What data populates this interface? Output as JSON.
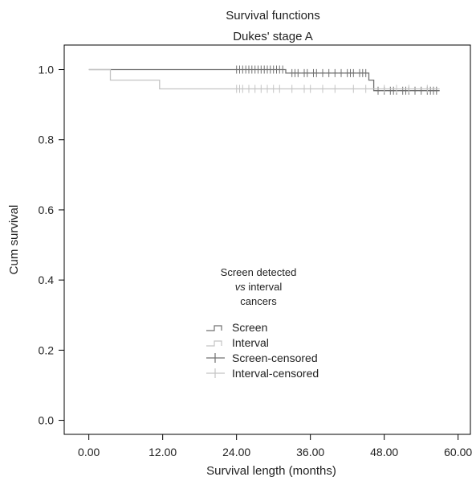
{
  "chart_data": {
    "type": "line",
    "title": "Survival functions",
    "subtitle": "Dukes' stage A",
    "xlabel": "Survival length (months)",
    "ylabel": "Cum survival",
    "xlim": [
      -4,
      62
    ],
    "ylim": [
      -0.04,
      1.07
    ],
    "x_ticks": [
      0,
      12,
      24,
      36,
      48,
      60
    ],
    "x_tick_labels": [
      "0.00",
      "12.00",
      "24.00",
      "36.00",
      "48.00",
      "60.00"
    ],
    "y_ticks": [
      0.0,
      0.2,
      0.4,
      0.6,
      0.8,
      1.0
    ],
    "y_tick_labels": [
      "0.0",
      "0.2",
      "0.4",
      "0.6",
      "0.8",
      "1.0"
    ],
    "grid": false,
    "legend": {
      "placement": "center",
      "title_line1": "Screen detected",
      "title_line2_italic": "vs",
      "title_line2_rest": " interval",
      "title_line3": "cancers",
      "entries": [
        {
          "label": "Screen",
          "kind": "step",
          "color": "#707070"
        },
        {
          "label": "Interval",
          "kind": "step",
          "color": "#c4c4c4"
        },
        {
          "label": "Screen-censored",
          "kind": "censor",
          "color": "#707070"
        },
        {
          "label": "Interval-censored",
          "kind": "censor",
          "color": "#c4c4c4"
        }
      ]
    },
    "series": [
      {
        "label": "Screen",
        "color": "#707070",
        "steps": [
          [
            0,
            1.0
          ],
          [
            32,
            1.0
          ],
          [
            32,
            0.99
          ],
          [
            45.5,
            0.99
          ],
          [
            45.5,
            0.97
          ],
          [
            46.3,
            0.97
          ],
          [
            46.3,
            0.94
          ],
          [
            57,
            0.94
          ]
        ],
        "censored": [
          [
            24,
            1.0
          ],
          [
            24.5,
            1.0
          ],
          [
            25,
            1.0
          ],
          [
            25.5,
            1.0
          ],
          [
            26,
            1.0
          ],
          [
            26.5,
            1.0
          ],
          [
            27,
            1.0
          ],
          [
            27.5,
            1.0
          ],
          [
            28,
            1.0
          ],
          [
            28.5,
            1.0
          ],
          [
            29,
            1.0
          ],
          [
            29.5,
            1.0
          ],
          [
            30,
            1.0
          ],
          [
            30.5,
            1.0
          ],
          [
            31,
            1.0
          ],
          [
            31.5,
            1.0
          ],
          [
            33,
            0.99
          ],
          [
            33.5,
            0.99
          ],
          [
            34,
            0.99
          ],
          [
            35,
            0.99
          ],
          [
            35.5,
            0.99
          ],
          [
            36.5,
            0.99
          ],
          [
            37,
            0.99
          ],
          [
            38,
            0.99
          ],
          [
            39,
            0.99
          ],
          [
            40,
            0.99
          ],
          [
            41,
            0.99
          ],
          [
            42,
            0.99
          ],
          [
            42.5,
            0.99
          ],
          [
            43,
            0.99
          ],
          [
            44,
            0.99
          ],
          [
            44.5,
            0.99
          ],
          [
            45,
            0.99
          ],
          [
            47,
            0.94
          ],
          [
            48,
            0.94
          ],
          [
            49,
            0.94
          ],
          [
            49.5,
            0.94
          ],
          [
            50,
            0.94
          ],
          [
            51,
            0.94
          ],
          [
            51.5,
            0.94
          ],
          [
            52,
            0.94
          ],
          [
            53,
            0.94
          ],
          [
            54,
            0.94
          ],
          [
            55,
            0.94
          ],
          [
            55.5,
            0.94
          ],
          [
            56,
            0.94
          ],
          [
            56.5,
            0.94
          ]
        ]
      },
      {
        "label": "Interval",
        "color": "#c4c4c4",
        "steps": [
          [
            0,
            1.0
          ],
          [
            3.5,
            1.0
          ],
          [
            3.5,
            0.97
          ],
          [
            11.5,
            0.97
          ],
          [
            11.5,
            0.945
          ],
          [
            57,
            0.945
          ]
        ],
        "censored": [
          [
            24,
            0.945
          ],
          [
            24.5,
            0.945
          ],
          [
            25,
            0.945
          ],
          [
            26,
            0.945
          ],
          [
            27,
            0.945
          ],
          [
            28,
            0.945
          ],
          [
            29,
            0.945
          ],
          [
            30,
            0.945
          ],
          [
            31,
            0.945
          ],
          [
            33,
            0.945
          ],
          [
            35,
            0.945
          ],
          [
            36,
            0.945
          ],
          [
            38,
            0.945
          ],
          [
            40,
            0.945
          ],
          [
            43,
            0.945
          ],
          [
            45,
            0.945
          ],
          [
            48,
            0.945
          ],
          [
            50,
            0.945
          ],
          [
            52,
            0.945
          ],
          [
            55,
            0.945
          ]
        ]
      }
    ]
  }
}
